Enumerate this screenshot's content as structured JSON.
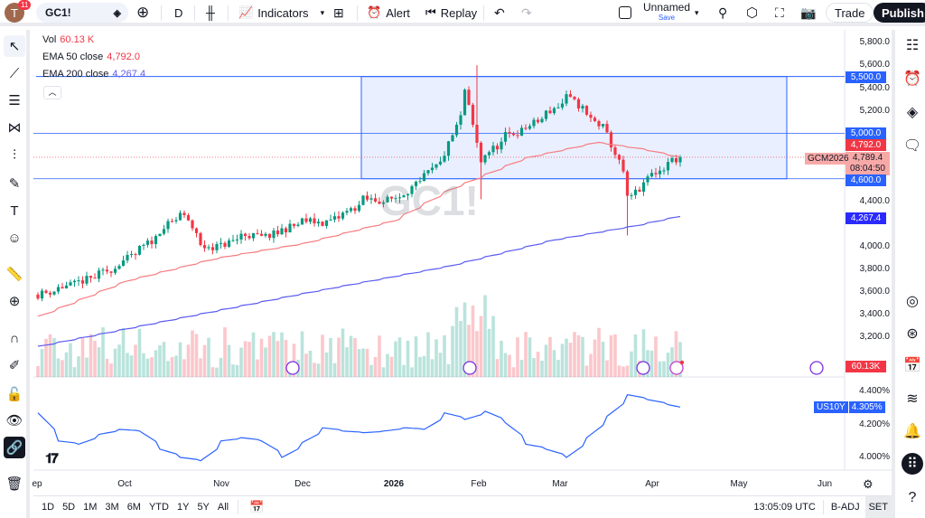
{
  "topbar": {
    "avatar": "T",
    "notifications": "11",
    "symbol": "GC1!",
    "interval": "D",
    "indicators": "Indicators",
    "alert": "Alert",
    "replay": "Replay",
    "layout_name": "Unnamed",
    "save": "Save",
    "trade": "Trade",
    "publish": "Publish"
  },
  "legend": {
    "vol_label": "Vol",
    "vol_value": "60.13 K",
    "ema50_label": "EMA 50 close",
    "ema50_value": "4,792.0",
    "ema200_label": "EMA 200 close",
    "ema200_value": "4,267.4"
  },
  "price_axis": {
    "ticks": [
      "5,800.0",
      "5,600.0",
      "5,400.0",
      "5,200.0",
      "4,400.0",
      "4,000.0",
      "3,800.0",
      "3,600.0",
      "3,400.0",
      "3,200.0"
    ],
    "tags": {
      "l5500": "5,500.0",
      "l5000": "5,000.0",
      "ema50": "4,792.0",
      "last": "4,789.4",
      "countdown": "08:04:50",
      "l4600": "4,600.0",
      "ema200": "4,267.4",
      "vol": "60.13K"
    },
    "contract": "GCM2026"
  },
  "sub_pane": {
    "symbol": "US10Y",
    "value": "4.305%",
    "ticks": [
      "4.400%",
      "4.200%",
      "4.000%"
    ]
  },
  "time_axis": {
    "labels": [
      "ep",
      "Oct",
      "Nov",
      "Dec",
      "2026",
      "Feb",
      "Mar",
      "Apr",
      "May",
      "Jun"
    ]
  },
  "bottombar": {
    "ranges": [
      "1D",
      "5D",
      "1M",
      "3M",
      "6M",
      "YTD",
      "1Y",
      "5Y",
      "All"
    ],
    "clock": "13:05:09 UTC",
    "badj": "B-ADJ",
    "set": "SET"
  },
  "watermark": "GC1!",
  "colors": {
    "up": "#089981",
    "down": "#f23645",
    "ema50": "#f77c80",
    "ema200": "#5b5bf0",
    "us10y": "#2962ff",
    "rect": "#2962ff"
  },
  "chart_data": {
    "type": "candlestick",
    "gold_weekly_close": [
      [
        "2025-09-01",
        3580
      ],
      [
        "2025-09-08",
        3640
      ],
      [
        "2025-09-15",
        3690
      ],
      [
        "2025-09-22",
        3760
      ],
      [
        "2025-09-29",
        3860
      ],
      [
        "2025-10-06",
        3980
      ],
      [
        "2025-10-13",
        4150
      ],
      [
        "2025-10-20",
        4300
      ],
      [
        "2025-10-27",
        4000
      ],
      [
        "2025-11-03",
        4010
      ],
      [
        "2025-11-10",
        4110
      ],
      [
        "2025-11-17",
        4080
      ],
      [
        "2025-11-24",
        4150
      ],
      [
        "2025-12-01",
        4230
      ],
      [
        "2025-12-08",
        4210
      ],
      [
        "2025-12-15",
        4290
      ],
      [
        "2025-12-22",
        4420
      ],
      [
        "2025-12-29",
        4400
      ],
      [
        "2026-01-05",
        4480
      ],
      [
        "2026-01-12",
        4620
      ],
      [
        "2026-01-19",
        4820
      ],
      [
        "2026-01-26",
        5380
      ],
      [
        "2026-01-30",
        4750
      ],
      [
        "2026-02-09",
        4980
      ],
      [
        "2026-02-16",
        5050
      ],
      [
        "2026-02-23",
        5180
      ],
      [
        "2026-03-02",
        5320
      ],
      [
        "2026-03-09",
        5150
      ],
      [
        "2026-03-16",
        4980
      ],
      [
        "2026-03-23",
        4420
      ],
      [
        "2026-03-30",
        4620
      ],
      [
        "2026-04-06",
        4750
      ],
      [
        "2026-04-09",
        4789.4
      ]
    ],
    "ema50_weekly": [
      [
        "2025-09-01",
        3390
      ],
      [
        "2025-10-01",
        3700
      ],
      [
        "2025-11-01",
        3900
      ],
      [
        "2025-12-01",
        4030
      ],
      [
        "2026-01-01",
        4230
      ],
      [
        "2026-01-20",
        4500
      ],
      [
        "2026-02-15",
        4780
      ],
      [
        "2026-03-12",
        4920
      ],
      [
        "2026-03-28",
        4860
      ],
      [
        "2026-04-09",
        4792
      ]
    ],
    "ema200_weekly": [
      [
        "2025-09-01",
        3125
      ],
      [
        "2025-10-15",
        3350
      ],
      [
        "2025-12-01",
        3590
      ],
      [
        "2026-01-20",
        3830
      ],
      [
        "2026-02-25",
        4060
      ],
      [
        "2026-03-25",
        4185
      ],
      [
        "2026-04-09",
        4267.4
      ]
    ],
    "us10y_weekly": [
      [
        "2025-09-01",
        4.27
      ],
      [
        "2025-09-08",
        4.1
      ],
      [
        "2025-09-15",
        4.08
      ],
      [
        "2025-09-22",
        4.14
      ],
      [
        "2025-09-29",
        4.17
      ],
      [
        "2025-10-06",
        4.16
      ],
      [
        "2025-10-13",
        4.05
      ],
      [
        "2025-10-20",
        4.0
      ],
      [
        "2025-10-27",
        3.98
      ],
      [
        "2025-11-03",
        4.1
      ],
      [
        "2025-11-10",
        4.12
      ],
      [
        "2025-11-17",
        4.1
      ],
      [
        "2025-11-24",
        4.0
      ],
      [
        "2025-12-01",
        4.09
      ],
      [
        "2025-12-08",
        4.18
      ],
      [
        "2025-12-15",
        4.16
      ],
      [
        "2025-12-22",
        4.15
      ],
      [
        "2025-12-29",
        4.16
      ],
      [
        "2026-01-05",
        4.18
      ],
      [
        "2026-01-12",
        4.17
      ],
      [
        "2026-01-19",
        4.27
      ],
      [
        "2026-01-26",
        4.23
      ],
      [
        "2026-02-02",
        4.28
      ],
      [
        "2026-02-09",
        4.21
      ],
      [
        "2026-02-16",
        4.08
      ],
      [
        "2026-02-23",
        4.05
      ],
      [
        "2026-03-02",
        4.0
      ],
      [
        "2026-03-09",
        4.12
      ],
      [
        "2026-03-16",
        4.25
      ],
      [
        "2026-03-23",
        4.38
      ],
      [
        "2026-03-30",
        4.35
      ],
      [
        "2026-04-06",
        4.32
      ],
      [
        "2026-04-09",
        4.305
      ]
    ],
    "levels": [
      5500,
      5000,
      4600
    ],
    "box": {
      "from": "2025-12-22",
      "to": "2026-05-20",
      "top": 5500,
      "bottom": 4600
    },
    "price_range": [
      3100,
      5850
    ],
    "us10y_range": [
      3.94,
      4.46
    ]
  }
}
